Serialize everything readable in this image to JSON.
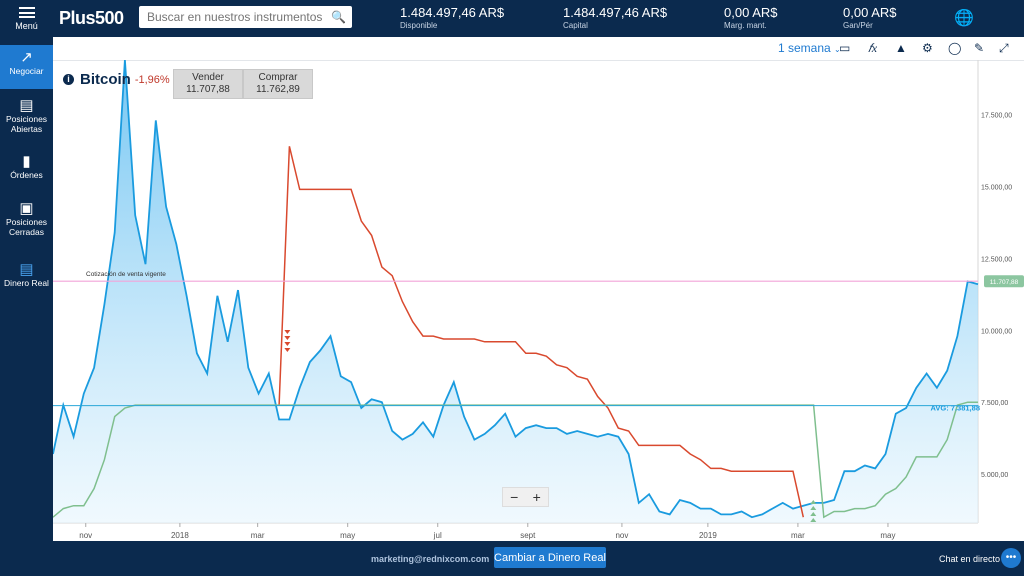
{
  "topbar": {
    "menu_label": "Menú",
    "logo": "Plus500",
    "search_placeholder": "Buscar en nuestros instrumentos",
    "stats": [
      {
        "value": "1.484.497,46 AR$",
        "label": "Disponible"
      },
      {
        "value": "1.484.497,46 AR$",
        "label": "Capital"
      },
      {
        "value": "0,00 AR$",
        "label": "Marg. mant."
      },
      {
        "value": "0,00 AR$",
        "label": "Gan/Pér"
      }
    ]
  },
  "sidebar": {
    "items": [
      {
        "label": "Negociar",
        "icon": "chart-line-icon"
      },
      {
        "label": "Posiciones Abiertas",
        "icon": "list-icon"
      },
      {
        "label": "Órdenes",
        "icon": "book-icon"
      },
      {
        "label": "Posiciones Cerradas",
        "icon": "briefcase-icon"
      },
      {
        "label": "Dinero Real",
        "icon": "money-icon"
      }
    ]
  },
  "toolbar": {
    "period": "1 semana",
    "chart_type_icon": "candlestick-icon",
    "indicators_icon": "fx-icon",
    "area_icon": "mountain-icon",
    "settings_icon": "gear-icon",
    "globe_icon": "globe-icon",
    "draw_icon": "pencil-icon",
    "expand_icon": "expand-icon"
  },
  "instrument": {
    "name": "Bitcoin",
    "change": "-1,96%",
    "sell_label": "Vender",
    "sell_value": "11.707,88",
    "buy_label": "Comprar",
    "buy_value": "11.762,89"
  },
  "chart_data": {
    "type": "area",
    "y_ticks": [
      "17.500,00",
      "15.000,00",
      "12.500,00",
      "10.000,00",
      "7.500,00",
      "5.000,00"
    ],
    "y_tick_values": [
      17500,
      15000,
      12500,
      10000,
      7500,
      5000
    ],
    "ylim": [
      3300,
      19400
    ],
    "x_ticks": [
      "nov",
      "2018",
      "mar",
      "may",
      "jul",
      "sept",
      "nov",
      "2019",
      "mar",
      "may"
    ],
    "x_tick_positions": [
      4,
      15.5,
      25,
      36,
      47,
      58,
      69.5,
      80,
      91,
      102
    ],
    "xlim": [
      0,
      113
    ],
    "current_price_label": "Cotización de venta vigente",
    "current_price_value": 11707.88,
    "current_price_tag": "11.707,88",
    "avg_label": "AVG: 7.381,88",
    "avg_value": 7381.88,
    "series": [
      {
        "values": [
          5700,
          7400,
          6300,
          7800,
          8700,
          10900,
          13400,
          19400,
          14000,
          12300,
          17300,
          14300,
          13000,
          11200,
          9200,
          8500,
          11200,
          9600,
          11400,
          8700,
          7800,
          8500,
          6900,
          6900,
          8000,
          8900,
          9300,
          9800,
          8400,
          8200,
          7300,
          7600,
          7500,
          6500,
          6200,
          6400,
          6800,
          6300,
          7400,
          8200,
          7000,
          6200,
          6400,
          6700,
          7100,
          6300,
          6600,
          6700,
          6600,
          6600,
          6400,
          6500,
          6400,
          6300,
          6400,
          6300,
          5700,
          4000,
          4300,
          3700,
          3600,
          4100,
          4000,
          3800,
          3800,
          3600,
          3600,
          3700,
          3500,
          3600,
          3800,
          4000,
          3800,
          3900,
          4000,
          4000,
          4100,
          5100,
          5100,
          5300,
          5200,
          5700,
          7100,
          7300,
          8000,
          8500,
          8000,
          8600,
          9800,
          11700,
          11600
        ],
        "color": "#1a9bdf"
      },
      {
        "values": [
          null,
          null,
          null,
          null,
          null,
          null,
          null,
          null,
          null,
          null,
          null,
          null,
          null,
          null,
          null,
          null,
          null,
          null,
          null,
          null,
          null,
          null,
          7400,
          16400,
          14900,
          14900,
          14900,
          14900,
          14900,
          14900,
          13800,
          13300,
          12200,
          11900,
          11000,
          10300,
          9800,
          9800,
          9700,
          9700,
          9700,
          9700,
          9600,
          9600,
          9600,
          9600,
          9200,
          9200,
          9100,
          8800,
          8700,
          8400,
          8300,
          7700,
          7300,
          6600,
          6500,
          6000,
          6000,
          6000,
          6000,
          6000,
          5700,
          5500,
          5200,
          5200,
          5100,
          5100,
          5100,
          5100,
          5100,
          5100,
          5100,
          3500
        ],
        "color": "#d9492e"
      },
      {
        "values": [
          3500,
          3800,
          3900,
          3900,
          4500,
          5500,
          7000,
          7300,
          7400,
          7400,
          7400,
          7400,
          7400,
          7400,
          7400,
          7400,
          7400,
          7400,
          7400,
          7400,
          7400,
          7400,
          7400,
          7400,
          7400,
          7400,
          7400,
          7400,
          7400,
          7400,
          7400,
          7400,
          7400,
          7400,
          7400,
          7400,
          7400,
          7400,
          7400,
          7400,
          7400,
          7400,
          7400,
          7400,
          7400,
          7400,
          7400,
          7400,
          7400,
          7400,
          7400,
          7400,
          7400,
          7400,
          7400,
          7400,
          7400,
          7400,
          7400,
          7400,
          7400,
          7400,
          7400,
          7400,
          7400,
          7400,
          7400,
          7400,
          7400,
          7400,
          7400,
          7400,
          7400,
          7400,
          7400,
          3500,
          3700,
          3700,
          3800,
          3800,
          3900,
          4300,
          4500,
          4900,
          5600,
          5600,
          5600,
          6200,
          7400,
          7500,
          7500
        ],
        "color": "#7fbf8e"
      }
    ]
  },
  "zoom": {
    "minus": "−",
    "plus": "+"
  },
  "bottombar": {
    "email": "marketing@rednixcom.com",
    "cta": "Cambiar a Dinero Real",
    "chat": "Chat en directo"
  }
}
